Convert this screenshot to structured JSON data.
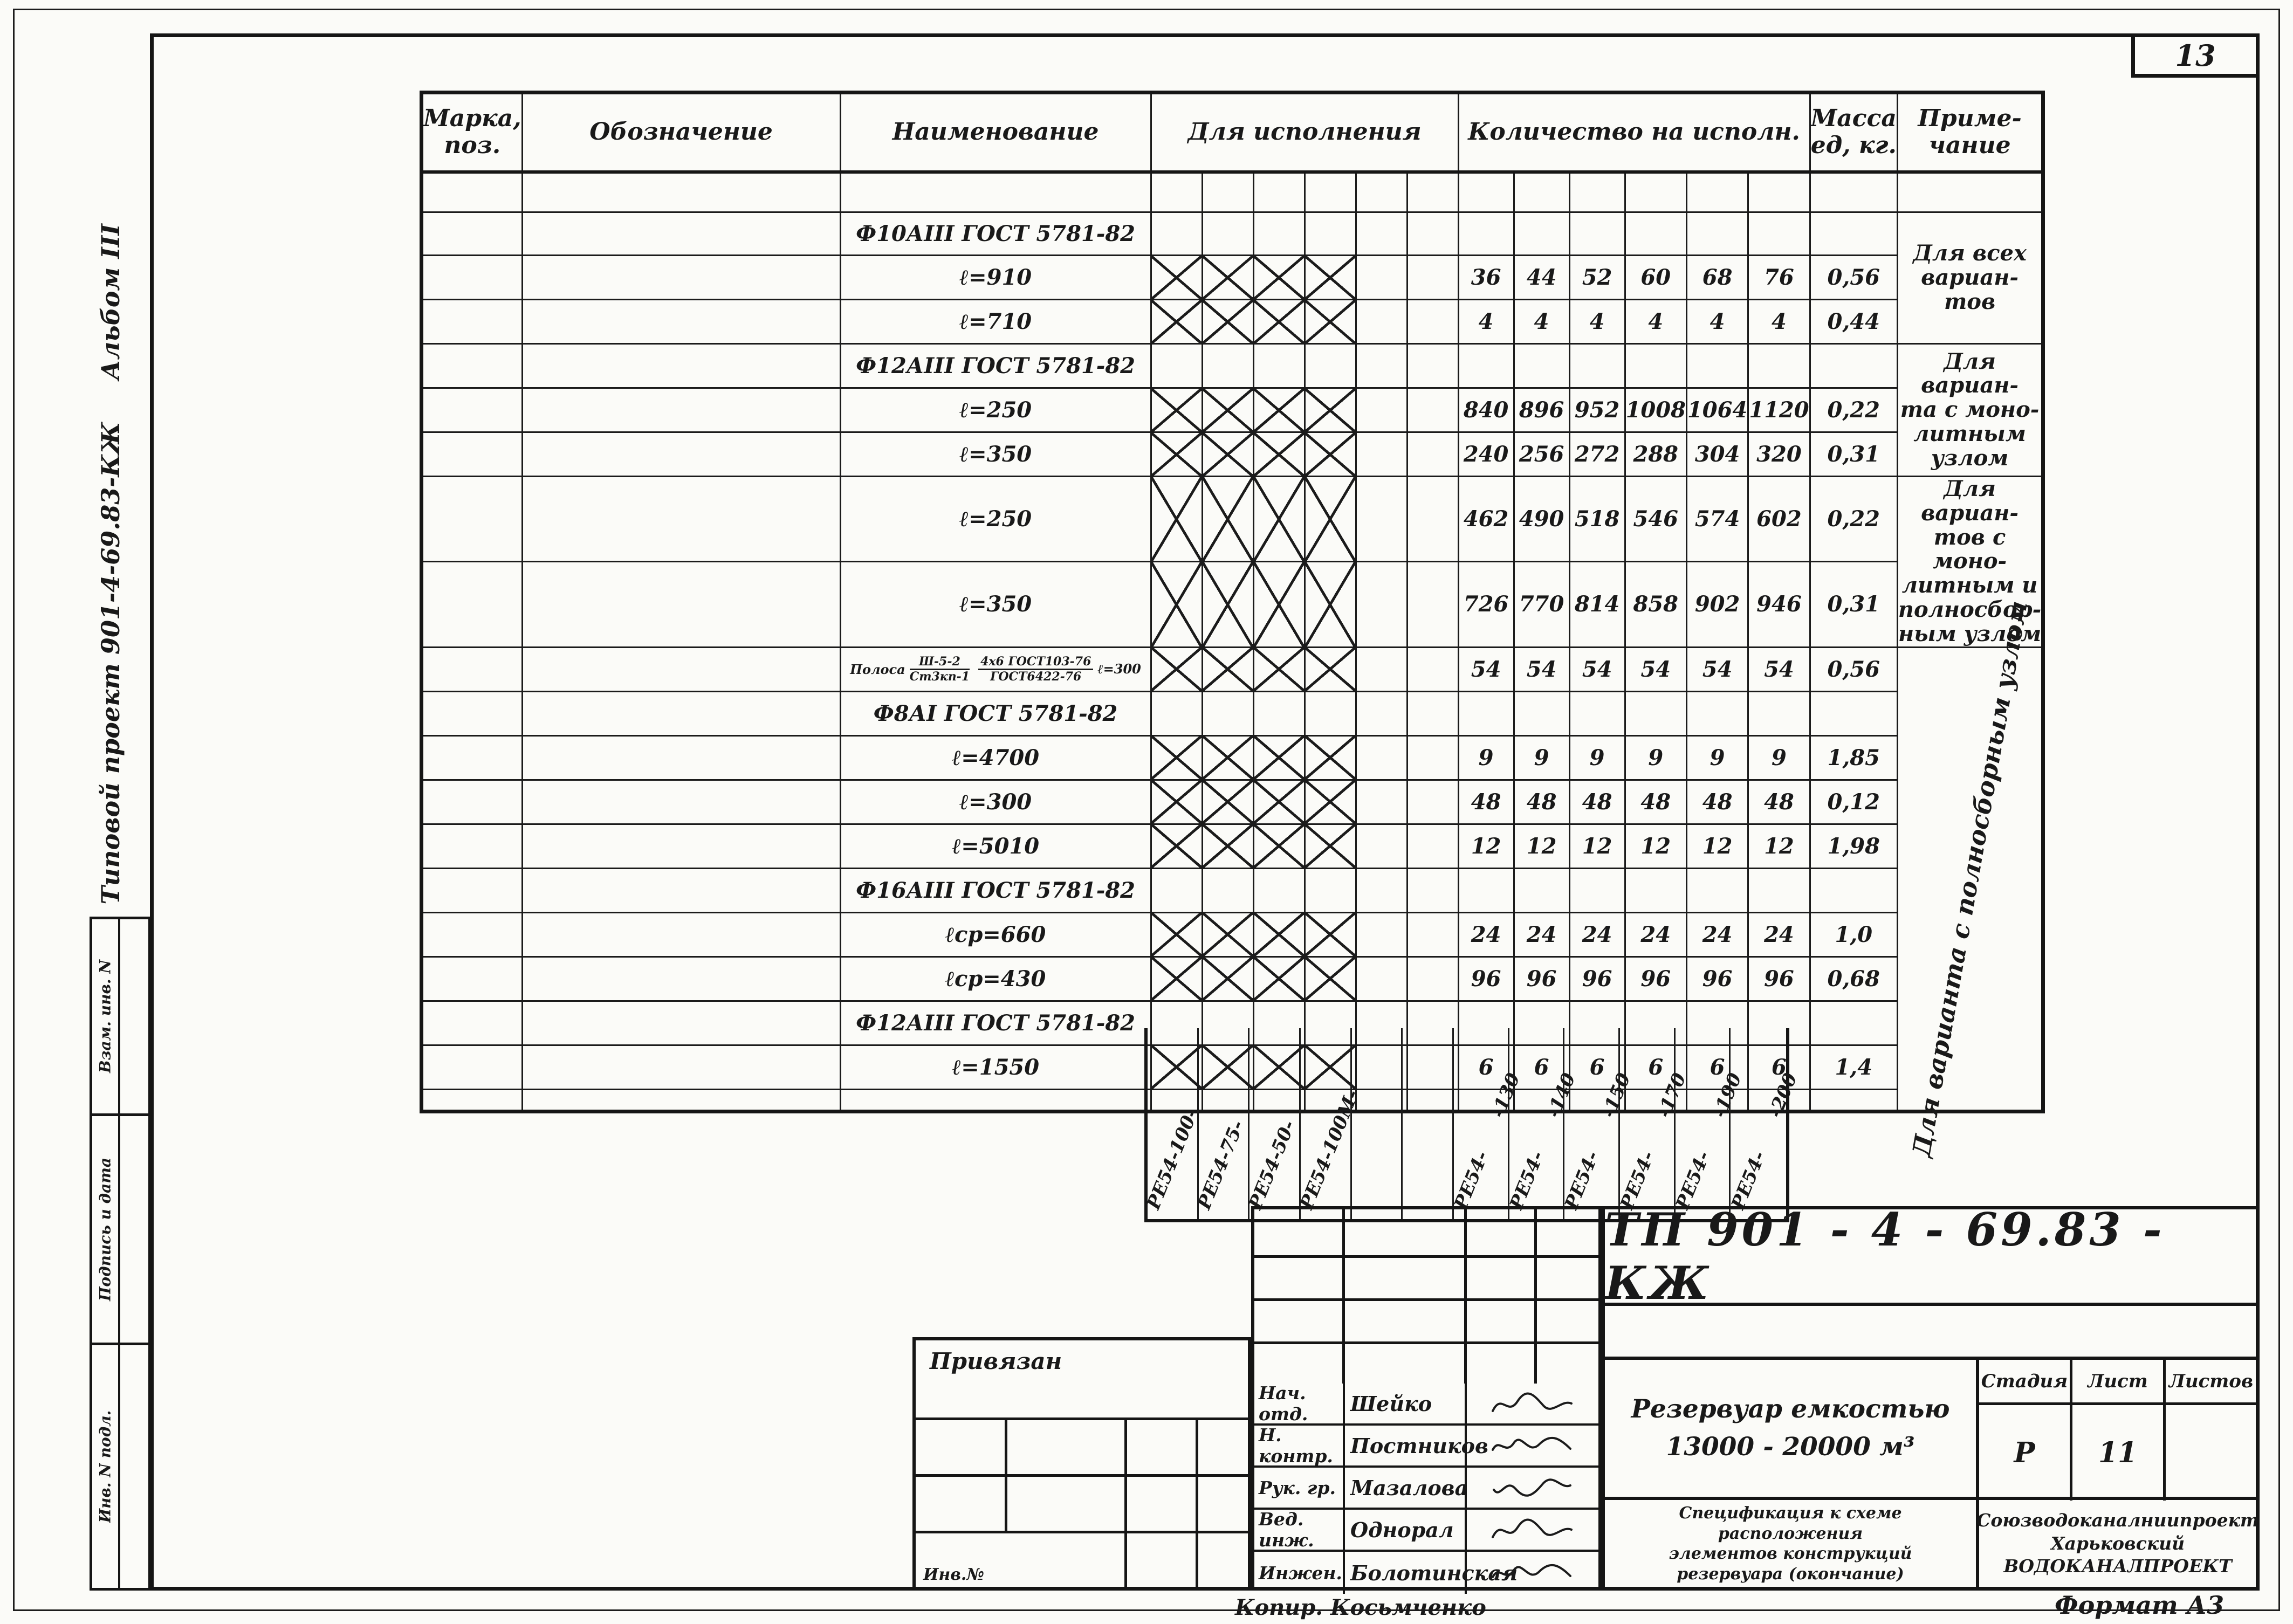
{
  "page": {
    "sheet_number": "13",
    "format_label": "Формат А3",
    "copier_label": "Копир. Косьмченко"
  },
  "left_margin": {
    "album_label": "Альбом III",
    "project_label": "Типовой проект 901-4-69.83-КЖ",
    "stamp_cells": [
      "Взам. инв. N",
      "Подпись и дата",
      "Инв. N подл."
    ]
  },
  "spec_table": {
    "headers": {
      "mark": "Марка,\nпоз.",
      "designation": "Обозначение",
      "name": "Наименование",
      "for_execution": "Для исполнения",
      "qty": "Количество на исполн.",
      "mass": "Масса\nед, кг.",
      "note": "Приме-\nчание"
    },
    "execution_columns": [
      "РЕ54-100-",
      "РЕ54-75-",
      "РЕ54-50-",
      "РЕ54-100М-",
      "",
      ""
    ],
    "qty_columns": [
      {
        "prefix": "РЕ54-",
        "suffix": "-130"
      },
      {
        "prefix": "РЕ54-",
        "suffix": "-140"
      },
      {
        "prefix": "РЕ54-",
        "suffix": "-150"
      },
      {
        "prefix": "РЕ54-",
        "suffix": "-170"
      },
      {
        "prefix": "РЕ54-",
        "suffix": "-190"
      },
      {
        "prefix": "РЕ54-",
        "suffix": "-200"
      }
    ],
    "rows": [
      {
        "type": "empty",
        "note": {
          "text": "",
          "span": 1
        }
      },
      {
        "type": "section",
        "name": "Ф10АIII ГОСТ 5781-82",
        "note": {
          "text": "Для всех\nвариан-\nтов",
          "span": 3,
          "big": true
        }
      },
      {
        "type": "item",
        "name": "ℓ=910",
        "x": true,
        "qty": [
          "36",
          "44",
          "52",
          "60",
          "68",
          "76"
        ],
        "mass": "0,56"
      },
      {
        "type": "item",
        "name": "ℓ=710",
        "x": true,
        "qty": [
          "4",
          "4",
          "4",
          "4",
          "4",
          "4"
        ],
        "mass": "0,44"
      },
      {
        "type": "section",
        "name": "Ф12АIII ГОСТ 5781-82",
        "note": {
          "text": "Для вариан-\nта с моно-\nлитным\nузлом",
          "span": 3
        }
      },
      {
        "type": "item",
        "name": "ℓ=250",
        "x": true,
        "qty": [
          "840",
          "896",
          "952",
          "1008",
          "1064",
          "1120"
        ],
        "mass": "0,22"
      },
      {
        "type": "item",
        "name": "ℓ=350",
        "x": true,
        "qty": [
          "240",
          "256",
          "272",
          "288",
          "304",
          "320"
        ],
        "mass": "0,31"
      },
      {
        "type": "item",
        "name": "ℓ=250",
        "x": true,
        "qty": [
          "462",
          "490",
          "518",
          "546",
          "574",
          "602"
        ],
        "mass": "0,22",
        "note": {
          "text": "Для вариан-\nтов с моно-\nлитным и\nполносбор-\nным узлом",
          "span": 2
        }
      },
      {
        "type": "item",
        "name": "ℓ=350",
        "x": true,
        "qty": [
          "726",
          "770",
          "814",
          "858",
          "902",
          "946"
        ],
        "mass": "0,31"
      },
      {
        "type": "item",
        "polosa": {
          "prefix": "Полоса",
          "f1top": "Ш-5-2",
          "f1bot": "Ст3кп-1",
          "f2top": "4х6 ГОСТ103-76",
          "f2bot": "ГОСТ6422-76",
          "suffix": "ℓ=300"
        },
        "x": true,
        "qty": [
          "54",
          "54",
          "54",
          "54",
          "54",
          "54"
        ],
        "mass": "0,56",
        "note": {
          "text": "Для варианта с\nполносборным узлом",
          "span": 11,
          "rotated": true
        }
      },
      {
        "type": "section",
        "name": "Ф8АI ГОСТ 5781-82"
      },
      {
        "type": "item",
        "name": "ℓ=4700",
        "x": true,
        "qty": [
          "9",
          "9",
          "9",
          "9",
          "9",
          "9"
        ],
        "mass": "1,85"
      },
      {
        "type": "item",
        "name": "ℓ=300",
        "x": true,
        "qty": [
          "48",
          "48",
          "48",
          "48",
          "48",
          "48"
        ],
        "mass": "0,12"
      },
      {
        "type": "item",
        "name": "ℓ=5010",
        "x": true,
        "qty": [
          "12",
          "12",
          "12",
          "12",
          "12",
          "12"
        ],
        "mass": "1,98"
      },
      {
        "type": "section",
        "name": "Ф16АIII ГОСТ 5781-82"
      },
      {
        "type": "item",
        "name": "ℓср=660",
        "x": true,
        "qty": [
          "24",
          "24",
          "24",
          "24",
          "24",
          "24"
        ],
        "mass": "1,0"
      },
      {
        "type": "item",
        "name": "ℓср=430",
        "x": true,
        "qty": [
          "96",
          "96",
          "96",
          "96",
          "96",
          "96"
        ],
        "mass": "0,68"
      },
      {
        "type": "section",
        "name": "Ф12АIII ГОСТ 5781-82"
      },
      {
        "type": "item",
        "name": "ℓ=1550",
        "x": true,
        "qty": [
          "6",
          "6",
          "6",
          "6",
          "6",
          "6"
        ],
        "mass": "1,4"
      },
      {
        "type": "empty"
      }
    ]
  },
  "title_block": {
    "doc_number": "ТП 901 - 4 - 69.83 - КЖ",
    "object_title_line1": "Резервуар емкостью",
    "object_title_line2": "13000 - 20000 м³",
    "stage_header": "Стадия",
    "sheet_header": "Лист",
    "sheets_header": "Листов",
    "stage_value": "Р",
    "sheet_value": "11",
    "sheets_value": "",
    "doc_title": "Спецификация к схеме расположения\nэлементов конструкций\nрезервуара (окончание)",
    "organization": "Союзводоканалниипроект\nХарьковский\nВОДОКАНАЛПРОЕКТ",
    "linked_label": "Привязан",
    "inv_label": "Инв.№",
    "signatures": [
      {
        "role": "Нач. отд.",
        "name": "Шейко"
      },
      {
        "role": "Н. контр.",
        "name": "Постников"
      },
      {
        "role": "Рук. гр.",
        "name": "Мазалова"
      },
      {
        "role": "Вед. инж.",
        "name": "Однорал"
      },
      {
        "role": "Инжен.",
        "name": "Болотинская"
      }
    ]
  }
}
